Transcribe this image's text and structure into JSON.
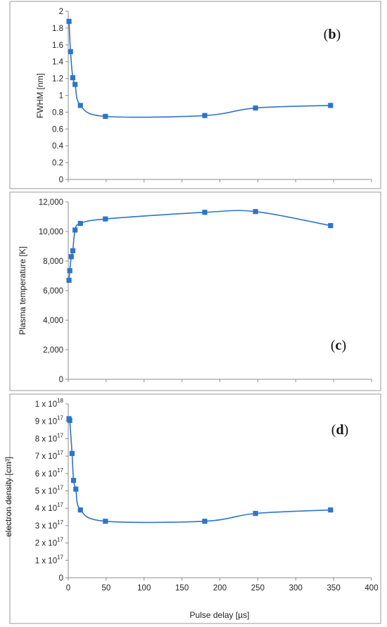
{
  "colors": {
    "series": "#2E74C9",
    "axis": "#8C8C8C",
    "text": "#222222",
    "border": "#9a9a9a"
  },
  "chart_data": [
    {
      "type": "line",
      "panel_label": "b",
      "ylabel": "FWHM [nm]",
      "xlim": [
        0,
        400
      ],
      "ylim": [
        0,
        2
      ],
      "y_ticks": [
        "0",
        "0.2",
        "0.4",
        "0.6",
        "0.8",
        "1",
        "1.2",
        "1.4",
        "1.6",
        "1.8",
        "2"
      ],
      "x": [
        1,
        3,
        6,
        9,
        16,
        49,
        180,
        247,
        346
      ],
      "values": [
        1.88,
        1.52,
        1.21,
        1.13,
        0.88,
        0.75,
        0.76,
        0.85,
        0.88
      ],
      "marker": "square",
      "grid": false
    },
    {
      "type": "line",
      "panel_label": "c",
      "ylabel": "Plasma temperature [K]",
      "xlim": [
        0,
        400
      ],
      "ylim": [
        0,
        12000
      ],
      "y_ticks": [
        "0",
        "2,000",
        "4,000",
        "6,000",
        "8,000",
        "10,000",
        "12,000"
      ],
      "x": [
        1,
        2,
        4,
        6,
        9,
        16,
        49,
        180,
        247,
        346
      ],
      "values": [
        6700,
        7350,
        8300,
        8700,
        10100,
        10550,
        10850,
        11300,
        11350,
        10400
      ],
      "marker": "square",
      "grid": false
    },
    {
      "type": "line",
      "panel_label": "d",
      "ylabel": "electron density [cm³]",
      "xlabel": "Pulse delay [µs]",
      "xlim": [
        0,
        400
      ],
      "x_ticks": [
        "0",
        "50",
        "100",
        "150",
        "200",
        "250",
        "300",
        "350",
        "400"
      ],
      "ylim": [
        0,
        1e+18
      ],
      "y_tick_values": [
        0,
        1e+17,
        2e+17,
        3e+17,
        4e+17,
        5e+17,
        6e+17,
        7e+17,
        8e+17,
        9e+17,
        1e+18
      ],
      "y_ticks": [
        {
          "mant": "0",
          "exp": ""
        },
        {
          "mant": "1 x 10",
          "exp": "17"
        },
        {
          "mant": "2 x 10",
          "exp": "17"
        },
        {
          "mant": "3 x 10",
          "exp": "17"
        },
        {
          "mant": "4 x 10",
          "exp": "17"
        },
        {
          "mant": "5 x 10",
          "exp": "17"
        },
        {
          "mant": "6 x 10",
          "exp": "17"
        },
        {
          "mant": "7 x 10",
          "exp": "17"
        },
        {
          "mant": "8 x 10",
          "exp": "17"
        },
        {
          "mant": "9 x 10",
          "exp": "17"
        },
        {
          "mant": "1 x 10",
          "exp": "18"
        }
      ],
      "x": [
        1,
        2,
        5,
        7,
        10,
        16,
        49,
        180,
        247,
        346
      ],
      "values": [
        9.15e+17,
        9.05e+17,
        7.15e+17,
        5.6e+17,
        5.1e+17,
        3.9e+17,
        3.25e+17,
        3.25e+17,
        3.7e+17,
        3.9e+17
      ],
      "marker": "square",
      "grid": false
    }
  ]
}
